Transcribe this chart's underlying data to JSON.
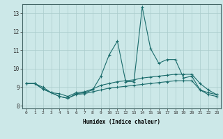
{
  "xlabel": "Humidex (Indice chaleur)",
  "bg_color": "#cce8e8",
  "grid_color": "#aacccc",
  "line_color": "#1a6b6b",
  "xlim": [
    -0.5,
    23.5
  ],
  "ylim": [
    7.85,
    13.5
  ],
  "yticks": [
    8,
    9,
    10,
    11,
    12,
    13
  ],
  "xticks": [
    0,
    1,
    2,
    3,
    4,
    5,
    6,
    7,
    8,
    9,
    10,
    11,
    12,
    13,
    14,
    15,
    16,
    17,
    18,
    19,
    20,
    21,
    22,
    23
  ],
  "line1_x": [
    0,
    1,
    2,
    3,
    4,
    5,
    6,
    7,
    8,
    9,
    10,
    11,
    12,
    13,
    14,
    15,
    16,
    17,
    18,
    19,
    20,
    21,
    22,
    23
  ],
  "line1_y": [
    9.2,
    9.2,
    9.0,
    8.7,
    8.5,
    8.4,
    8.65,
    8.7,
    8.85,
    9.6,
    10.75,
    11.5,
    9.3,
    9.3,
    13.35,
    11.1,
    10.3,
    10.5,
    10.5,
    9.5,
    9.6,
    8.85,
    8.7,
    8.6
  ],
  "line2_x": [
    0,
    1,
    2,
    3,
    4,
    5,
    6,
    7,
    8,
    9,
    10,
    11,
    12,
    13,
    14,
    15,
    16,
    17,
    18,
    19,
    20,
    21,
    22,
    23
  ],
  "line2_y": [
    9.2,
    9.2,
    8.9,
    8.7,
    8.65,
    8.5,
    8.7,
    8.75,
    8.9,
    9.1,
    9.2,
    9.3,
    9.35,
    9.4,
    9.5,
    9.55,
    9.6,
    9.65,
    9.7,
    9.7,
    9.7,
    9.2,
    8.85,
    8.6
  ],
  "line3_x": [
    0,
    1,
    2,
    3,
    4,
    5,
    6,
    7,
    8,
    9,
    10,
    11,
    12,
    13,
    14,
    15,
    16,
    17,
    18,
    19,
    20,
    21,
    22,
    23
  ],
  "line3_y": [
    9.2,
    9.2,
    8.9,
    8.7,
    8.5,
    8.4,
    8.6,
    8.65,
    8.75,
    8.85,
    8.95,
    9.0,
    9.05,
    9.1,
    9.15,
    9.2,
    9.25,
    9.3,
    9.35,
    9.35,
    9.35,
    8.85,
    8.6,
    8.5
  ]
}
